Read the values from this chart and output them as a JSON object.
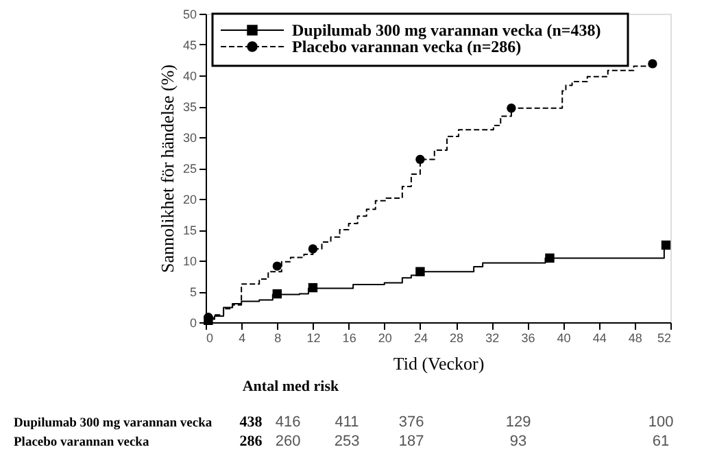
{
  "chart_data": {
    "type": "step",
    "xlabel": "Tid (Veckor)",
    "ylabel": "Sannolikhet för händelse (%)",
    "xlim": [
      0,
      52
    ],
    "xticks": [
      0,
      4,
      8,
      12,
      16,
      20,
      24,
      28,
      32,
      36,
      40,
      44,
      48,
      52
    ],
    "ylim": [
      0,
      50
    ],
    "yticks": [
      0,
      5,
      10,
      15,
      20,
      25,
      30,
      35,
      40,
      45,
      50
    ],
    "grid": false,
    "legend": "top",
    "series": [
      {
        "name": "Dupilumab 300 mg varannan vecka (n=438)",
        "color": "#000000",
        "line_style": "solid",
        "x": [
          0,
          0.5,
          1,
          2,
          3,
          4,
          6,
          7.5,
          10.5,
          11.5,
          16.5,
          20,
          22,
          23,
          24,
          30,
          31,
          38,
          51.3,
          51.5
        ],
        "values": [
          0,
          0.5,
          1,
          2.4,
          3,
          3.4,
          3.6,
          4.5,
          4.6,
          5.5,
          6.1,
          6.4,
          7.2,
          7.6,
          8.2,
          9,
          9.6,
          10.4,
          12.5,
          12.5
        ]
      },
      {
        "name": "Placebo varannan vecka (n=286)",
        "color": "#000000",
        "line_style": "dashed",
        "x": [
          0,
          0.3,
          1,
          2,
          3,
          4,
          6,
          7,
          8.5,
          9.5,
          11,
          12,
          13,
          14,
          15,
          16,
          17,
          18,
          19,
          20.2,
          22,
          23,
          24,
          25.6,
          27,
          28.3,
          32.2,
          33,
          34.2,
          39.9,
          40.3,
          41,
          42.7,
          45,
          47.9,
          50
        ],
        "values": [
          0,
          0.7,
          1.2,
          2.2,
          2.8,
          6.2,
          7,
          8.2,
          9.8,
          10.5,
          11,
          11.9,
          13,
          13.8,
          15,
          16,
          17.2,
          18.3,
          19.7,
          20.1,
          22,
          24,
          26.4,
          27.9,
          30.1,
          31.2,
          31.9,
          33.4,
          34.7,
          37.5,
          38.4,
          39,
          39.8,
          40.8,
          41.5,
          41.9
        ]
      },
      {
        "type": "scatter",
        "color": "#000000",
        "marker": "square",
        "x": [
          0.3,
          8,
          12,
          24,
          38.5,
          51.5
        ],
        "values": [
          0.3,
          4.6,
          5.6,
          8.2,
          10.4,
          12.5
        ]
      },
      {
        "type": "scatter",
        "color": "#000000",
        "marker": "circle",
        "x": [
          0.3,
          8,
          12,
          24,
          34.2,
          50
        ],
        "values": [
          0.8,
          9.1,
          11.9,
          26.4,
          34.7,
          41.9
        ]
      }
    ],
    "annotations": [
      "Antal med risk",
      "Dupilumab 300 mg varannan vecka",
      "438",
      "416",
      "411",
      "376",
      "129",
      "100",
      "Placebo varannan vecka",
      "286",
      "260",
      "253",
      "187",
      "93",
      "61"
    ]
  }
}
